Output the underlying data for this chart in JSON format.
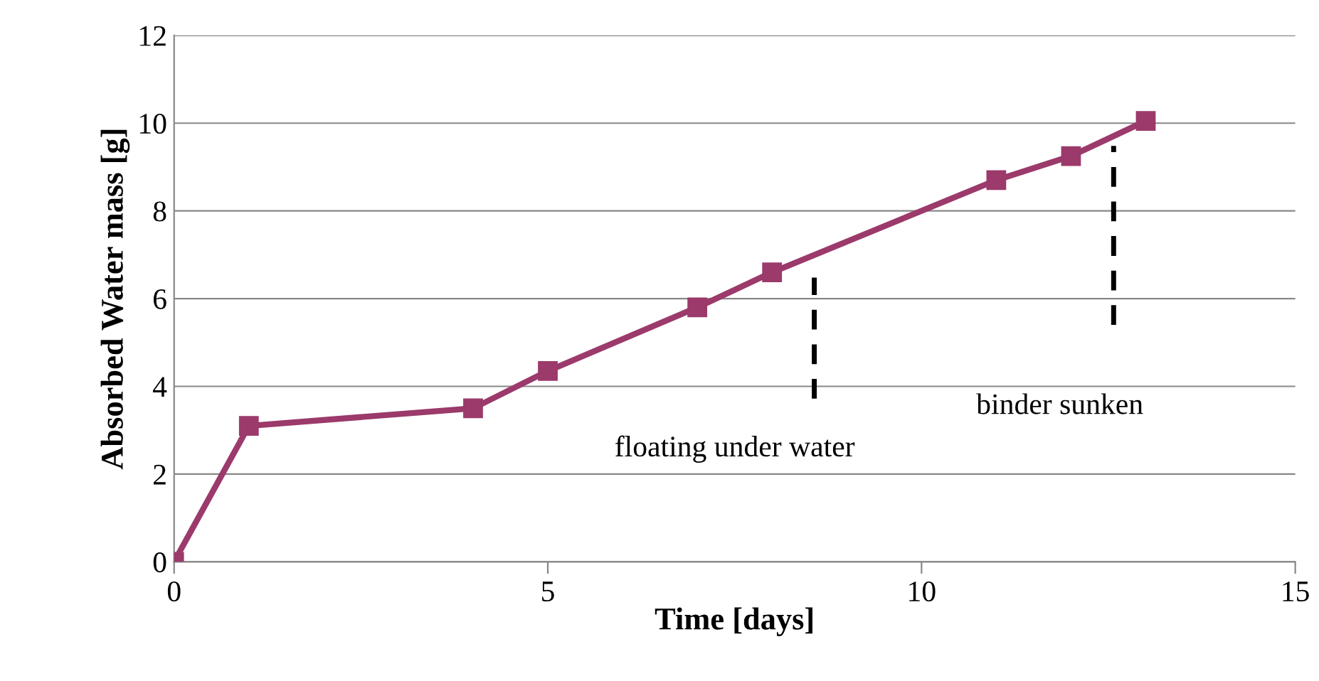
{
  "chart_data": {
    "type": "line",
    "xlabel": "Time [days]",
    "ylabel": "Absorbed Water mass [g]",
    "x": [
      0,
      1,
      4,
      5,
      7,
      8,
      11,
      12,
      13
    ],
    "series": [
      {
        "color": "#9b3a6b",
        "values": [
          0,
          3.1,
          3.5,
          4.35,
          5.8,
          6.6,
          8.7,
          9.25,
          10.05
        ]
      }
    ],
    "xlim": [
      0,
      15
    ],
    "xticks": [
      0,
      5,
      10,
      15
    ],
    "ylim": [
      0,
      12
    ],
    "yticks": [
      0,
      2,
      4,
      6,
      8,
      10,
      12
    ],
    "grid": "y",
    "marker": "square",
    "line_style": "solid",
    "annotations": [
      "floating under water",
      "binder sunken"
    ]
  }
}
